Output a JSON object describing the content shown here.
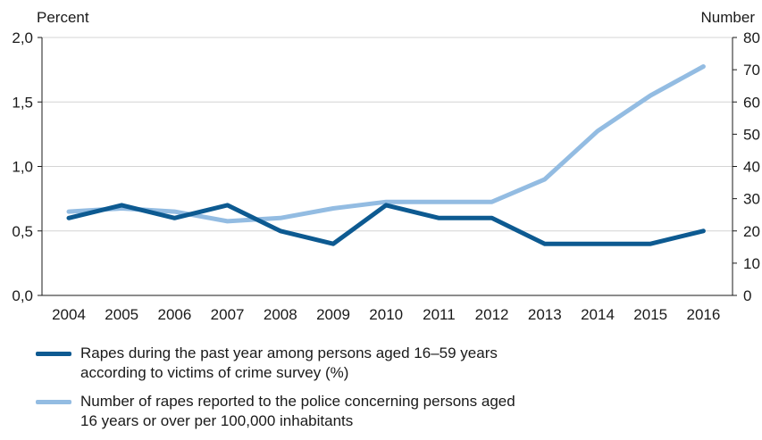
{
  "chart_data": {
    "type": "line",
    "title": "",
    "x": [
      2004,
      2005,
      2006,
      2007,
      2008,
      2009,
      2010,
      2011,
      2012,
      2013,
      2014,
      2015,
      2016
    ],
    "x_tick_labels": [
      "2004",
      "2005",
      "2006",
      "2007",
      "2008",
      "2009",
      "2010",
      "2011",
      "2012",
      "2013",
      "2014",
      "2015",
      "2016"
    ],
    "y_left": {
      "label": "Percent",
      "ylim": [
        0,
        2.0
      ],
      "ticks": [
        0,
        0.5,
        1.0,
        1.5,
        2.0
      ],
      "tick_labels": [
        "0,0",
        "0,5",
        "1,0",
        "1,5",
        "2,0"
      ]
    },
    "y_right": {
      "label": "Number",
      "ylim": [
        0,
        80
      ],
      "ticks": [
        0,
        10,
        20,
        30,
        40,
        50,
        60,
        70,
        80
      ],
      "tick_labels": [
        "0",
        "10",
        "20",
        "30",
        "40",
        "50",
        "60",
        "70",
        "80"
      ]
    },
    "grid": "horizontal",
    "legend_position": "bottom",
    "series": [
      {
        "name": "Rapes during the past year among persons aged 16–59 years according to victims of crime survey (%)",
        "legend_lines": [
          "Rapes during the past year among persons aged 16–59 years",
          "according to victims of crime survey (%)"
        ],
        "axis": "left",
        "color": "#0d5a91",
        "values": [
          0.6,
          0.7,
          0.6,
          0.7,
          0.5,
          0.4,
          0.7,
          0.6,
          0.6,
          0.4,
          0.4,
          0.4,
          0.5
        ]
      },
      {
        "name": "Number of rapes reported to the police concerning persons aged 16 years or over per 100,000 inhabitants",
        "legend_lines": [
          "Number of rapes reported to the police concerning persons aged",
          "16 years or over per 100,000 inhabitants"
        ],
        "axis": "right",
        "color": "#93bce2",
        "values": [
          26,
          27,
          26,
          23,
          24,
          27,
          29,
          29,
          29,
          36,
          51,
          62,
          71
        ]
      }
    ]
  }
}
